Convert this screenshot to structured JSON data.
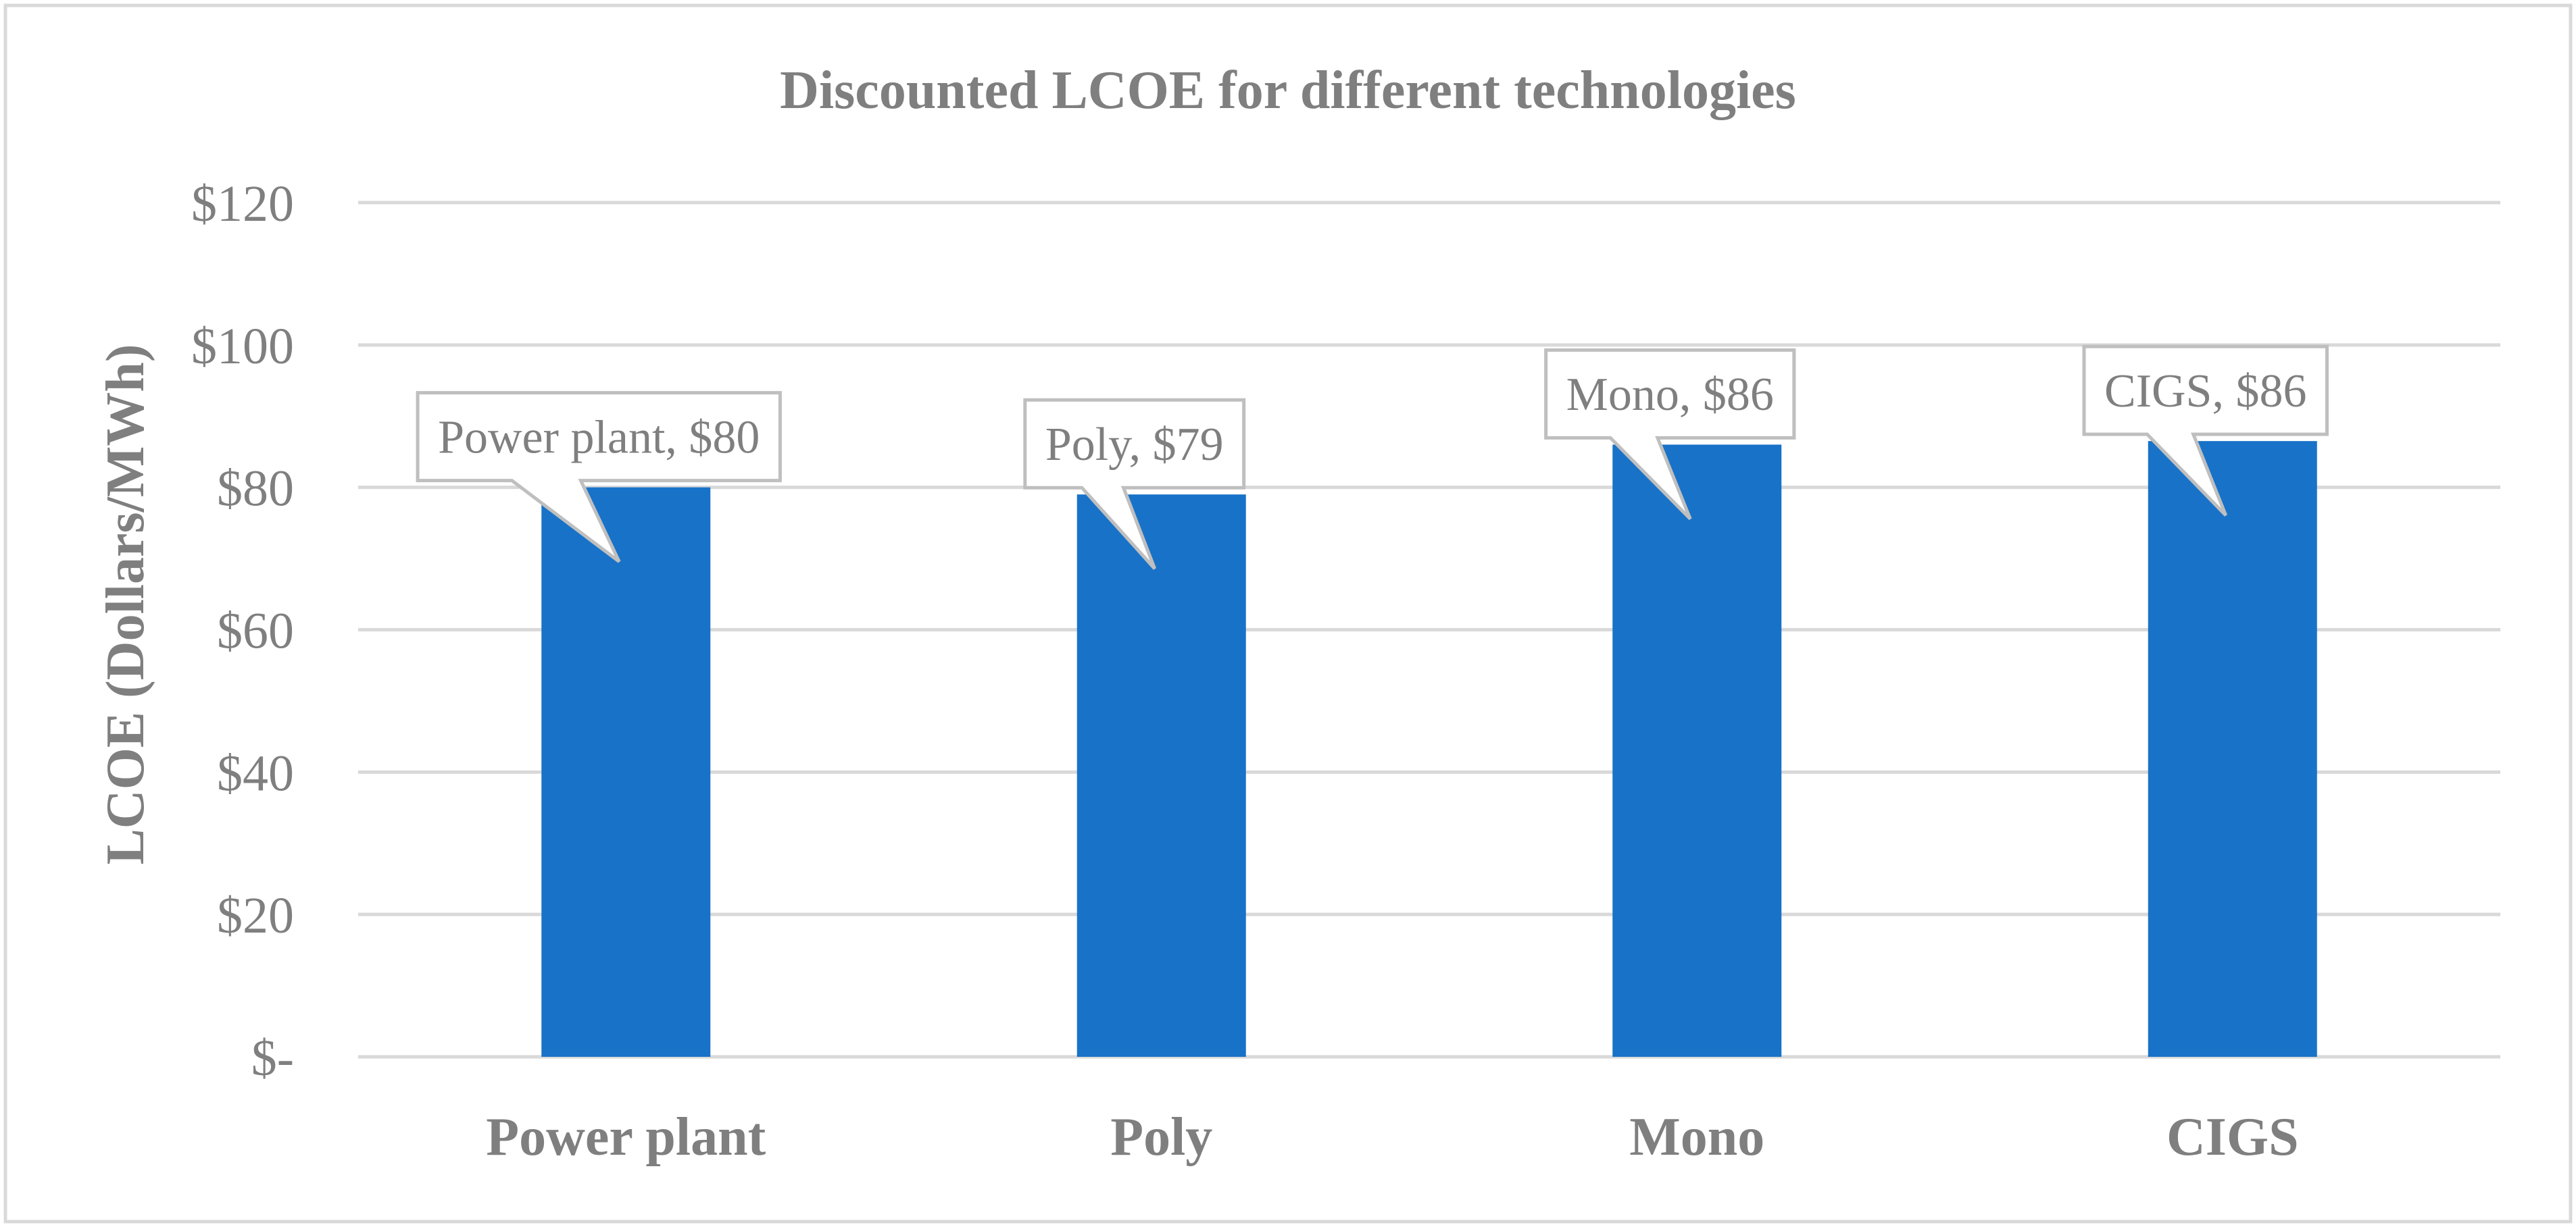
{
  "chart_data": {
    "type": "bar",
    "title": "Discounted LCOE for different technologies",
    "xlabel": "",
    "ylabel": "LCOE (Dollars/MWh)",
    "ylim": [
      0,
      120
    ],
    "yticks": [
      0,
      20,
      40,
      60,
      80,
      100,
      120
    ],
    "ytick_labels": [
      "$-",
      "$20",
      "$40",
      "$60",
      "$80",
      "$100",
      "$120"
    ],
    "categories": [
      "Power plant",
      "Poly",
      "Mono",
      "CIGS"
    ],
    "values": [
      80,
      79,
      86,
      86.5
    ],
    "data_labels": [
      "Power plant,  $80",
      "Poly,  $79",
      "Mono,  $86",
      "CIGS,  $86"
    ],
    "grid": true,
    "legend": "none"
  },
  "colors": {
    "bar": "#1872C8",
    "text": "#7F7F7F",
    "grid": "#D9D9D9",
    "callout_border": "#BFBFBF",
    "frame": "#D9D9D9"
  }
}
